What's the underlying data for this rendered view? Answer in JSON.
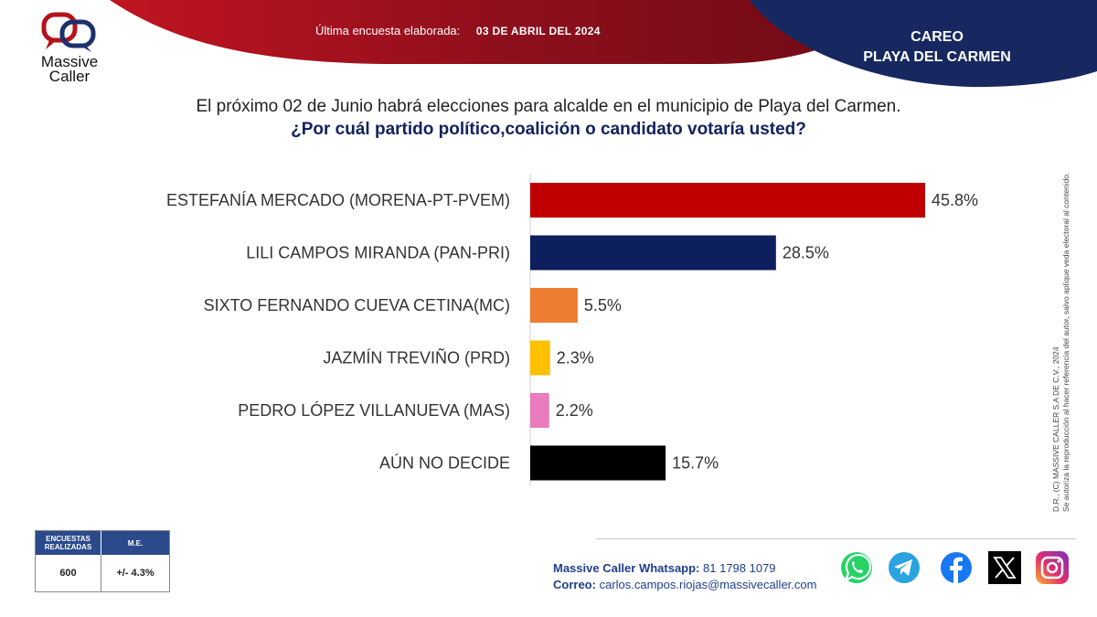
{
  "header": {
    "date_label": "Última encuesta elaborada:",
    "date_value": "03 DE ABRIL DEL 2024",
    "careo_line1": "CAREO",
    "careo_line2": "PLAYA DEL CARMEN"
  },
  "logo": {
    "line1": "Massive",
    "line2": "Caller"
  },
  "question": {
    "line1": "El próximo 02 de Junio habrá elecciones para alcalde en el municipio de  Playa del Carmen.",
    "line2": "¿Por cuál partido político,coalición  o candidato votaría usted?"
  },
  "chart_data": {
    "type": "bar",
    "orientation": "horizontal",
    "categories": [
      "ESTEFANÍA MERCADO (MORENA-PT-PVEM)",
      "LILI CAMPOS MIRANDA (PAN-PRI)",
      "SIXTO FERNANDO CUEVA CETINA(MC)",
      "JAZMÍN TREVIÑO (PRD)",
      "PEDRO LÓPEZ VILLANUEVA (MAS)",
      "AÚN NO DECIDE"
    ],
    "values": [
      45.8,
      28.5,
      5.5,
      2.3,
      2.2,
      15.7
    ],
    "value_labels": [
      "45.8%",
      "28.5%",
      "5.5%",
      "2.3%",
      "2.2%",
      "15.7%"
    ],
    "colors": [
      "#c00000",
      "#0d1f5c",
      "#ed7d31",
      "#ffc000",
      "#e87cbc",
      "#000000"
    ],
    "grid": false,
    "legend": "none"
  },
  "copyright": {
    "line1": "D.R., (C) MASSIVE CALLER S.A DE C.V., 2024",
    "line2": "Se autoriza la reproducción al hacer referencia del autor, salvo aplique veda electoral al contenido."
  },
  "stats": {
    "col1_header": "ENCUESTAS REALIZADAS",
    "col2_header": "M.E.",
    "col1_value": "600",
    "col2_value": "+/- 4.3%"
  },
  "footer": {
    "whatsapp_label": "Massive Caller Whatsapp:",
    "whatsapp_value": "81 1798 1079",
    "email_label": "Correo:",
    "email_value": "carlos.campos.riojas@massivecaller.com"
  },
  "social_icons": [
    "whatsapp-icon",
    "telegram-icon",
    "facebook-icon",
    "x-icon",
    "instagram-icon"
  ]
}
